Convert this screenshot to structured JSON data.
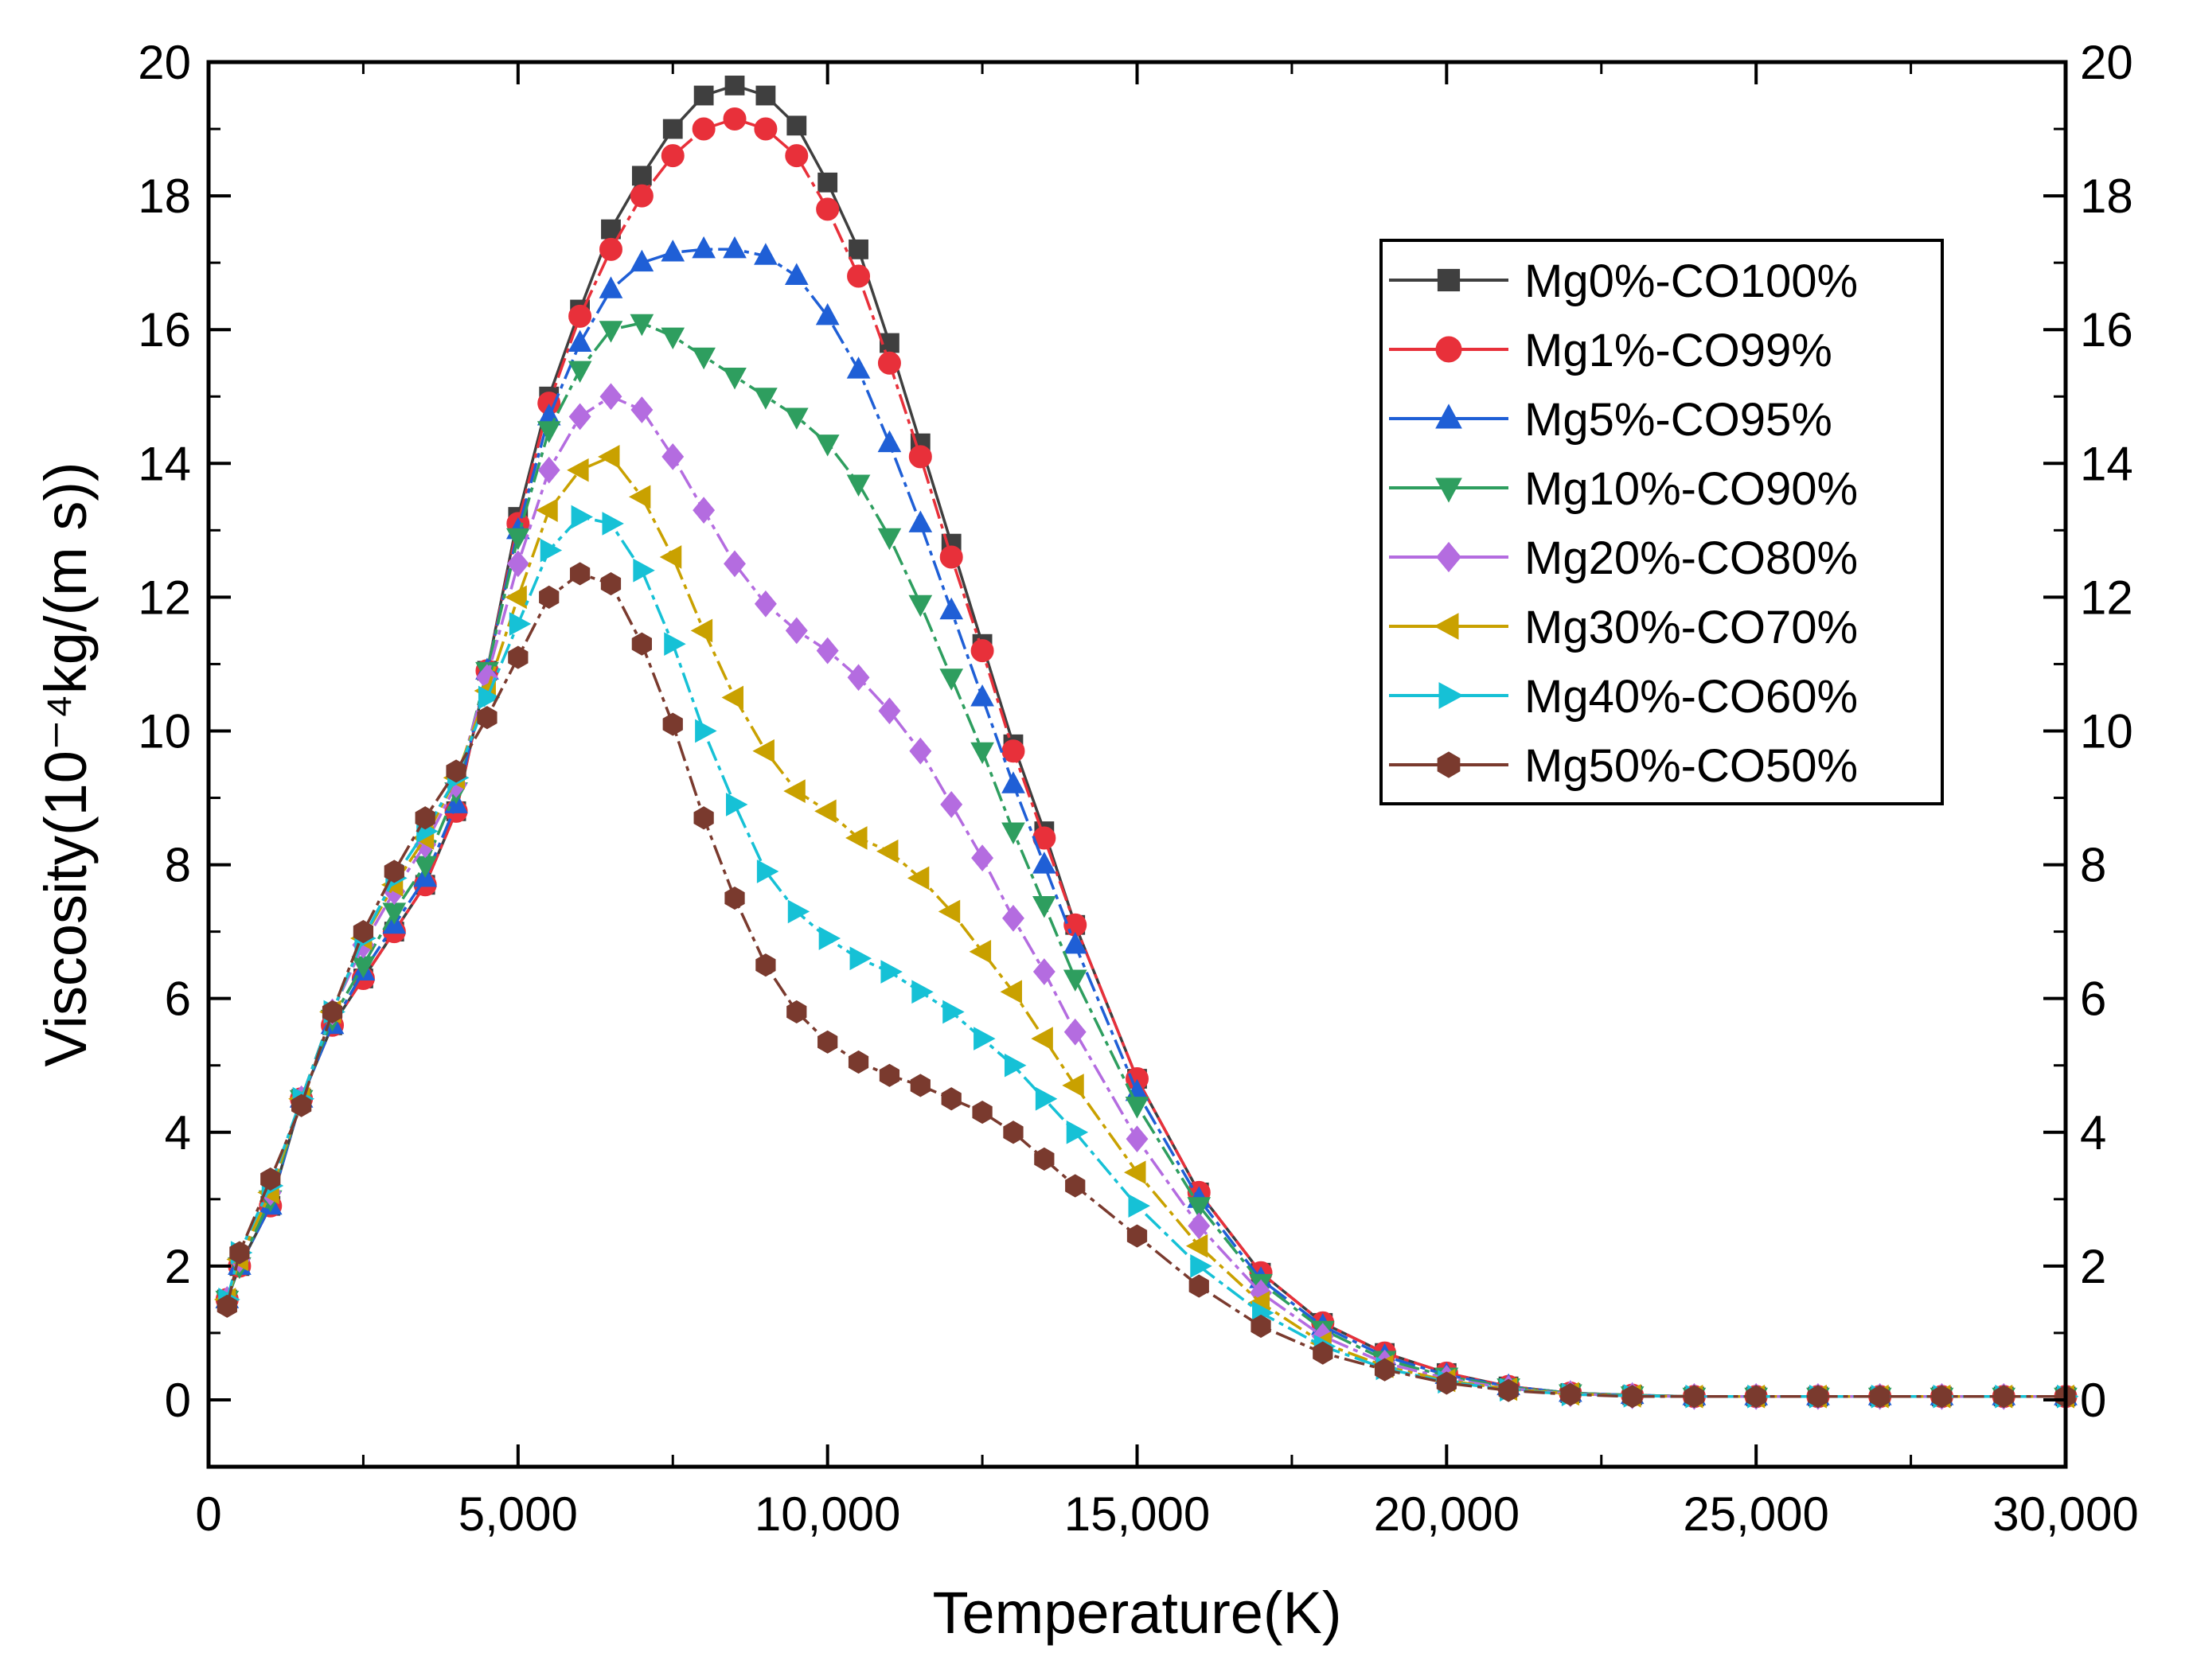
{
  "chart_data": {
    "type": "line",
    "title": "",
    "xlabel": "Temperature(K)",
    "ylabel": "Viscosity(10⁻⁴kg/(m s))",
    "xlim": [
      0,
      30000
    ],
    "ylim": [
      -1,
      20
    ],
    "xticks": [
      0,
      5000,
      10000,
      15000,
      20000,
      25000,
      30000
    ],
    "xtick_labels": [
      "0",
      "5,000",
      "10,000",
      "15,000",
      "20,000",
      "25,000",
      "30,000"
    ],
    "yticks": [
      0,
      2,
      4,
      6,
      8,
      10,
      12,
      14,
      16,
      18,
      20
    ],
    "ytick_labels": [
      "0",
      "2",
      "4",
      "6",
      "8",
      "10",
      "12",
      "14",
      "16",
      "18",
      "20"
    ],
    "right_axis_labels": true,
    "grid": false,
    "legend_position": "top-right",
    "x": [
      300,
      500,
      1000,
      1500,
      2000,
      2500,
      3000,
      3500,
      4000,
      4500,
      5000,
      5500,
      6000,
      6500,
      7000,
      7500,
      8000,
      8500,
      9000,
      9500,
      10000,
      10500,
      11000,
      11500,
      12000,
      12500,
      13000,
      13500,
      14000,
      15000,
      16000,
      17000,
      18000,
      19000,
      20000,
      21000,
      22000,
      23000,
      24000,
      25000,
      26000,
      27000,
      28000,
      29000,
      30000
    ],
    "series": [
      {
        "name": "Mg0%-CO100%",
        "color": "#3f3f3f",
        "marker": "square",
        "values": [
          1.5,
          2.0,
          2.9,
          4.5,
          5.6,
          6.3,
          7.0,
          7.7,
          8.8,
          10.9,
          13.2,
          15.0,
          16.3,
          17.5,
          18.3,
          19.0,
          19.5,
          19.65,
          19.5,
          19.05,
          18.2,
          17.2,
          15.8,
          14.3,
          12.8,
          11.3,
          9.8,
          8.5,
          7.1,
          4.8,
          3.1,
          1.9,
          1.15,
          0.7,
          0.4,
          0.2,
          0.1,
          0.07,
          0.05,
          0.05,
          0.05,
          0.05,
          0.05,
          0.05,
          0.05
        ]
      },
      {
        "name": "Mg1%-CO99%",
        "color": "#e8303a",
        "marker": "circle",
        "values": [
          1.5,
          2.0,
          2.9,
          4.5,
          5.6,
          6.3,
          7.0,
          7.7,
          8.8,
          10.9,
          13.1,
          14.9,
          16.2,
          17.2,
          18.0,
          18.6,
          19.0,
          19.15,
          19.0,
          18.6,
          17.8,
          16.8,
          15.5,
          14.1,
          12.6,
          11.2,
          9.7,
          8.4,
          7.1,
          4.8,
          3.1,
          1.9,
          1.15,
          0.7,
          0.4,
          0.2,
          0.1,
          0.07,
          0.05,
          0.05,
          0.05,
          0.05,
          0.05,
          0.05,
          0.05
        ]
      },
      {
        "name": "Mg5%-CO95%",
        "color": "#1f5fd6",
        "marker": "triangle-up",
        "values": [
          1.5,
          2.0,
          2.9,
          4.5,
          5.6,
          6.4,
          7.1,
          7.8,
          8.9,
          10.9,
          13.0,
          14.7,
          15.8,
          16.6,
          17.0,
          17.15,
          17.2,
          17.2,
          17.1,
          16.8,
          16.2,
          15.4,
          14.3,
          13.1,
          11.8,
          10.5,
          9.2,
          8.0,
          6.8,
          4.6,
          3.0,
          1.8,
          1.1,
          0.65,
          0.37,
          0.2,
          0.1,
          0.07,
          0.05,
          0.05,
          0.05,
          0.05,
          0.05,
          0.05,
          0.05
        ]
      },
      {
        "name": "Mg10%-CO90%",
        "color": "#2e9e5f",
        "marker": "triangle-down",
        "values": [
          1.5,
          2.0,
          3.0,
          4.5,
          5.7,
          6.5,
          7.3,
          8.0,
          9.1,
          10.9,
          12.9,
          14.5,
          15.4,
          16.0,
          16.1,
          15.9,
          15.6,
          15.3,
          15.0,
          14.7,
          14.3,
          13.7,
          12.9,
          11.9,
          10.8,
          9.7,
          8.5,
          7.4,
          6.3,
          4.4,
          2.9,
          1.75,
          1.05,
          0.6,
          0.35,
          0.19,
          0.1,
          0.07,
          0.05,
          0.05,
          0.05,
          0.05,
          0.05,
          0.05,
          0.05
        ]
      },
      {
        "name": "Mg20%-CO80%",
        "color": "#b46ce0",
        "marker": "diamond",
        "values": [
          1.5,
          2.1,
          3.1,
          4.5,
          5.8,
          6.8,
          7.6,
          8.3,
          9.2,
          10.8,
          12.5,
          13.9,
          14.7,
          15.0,
          14.8,
          14.1,
          13.3,
          12.5,
          11.9,
          11.5,
          11.2,
          10.8,
          10.3,
          9.7,
          8.9,
          8.1,
          7.2,
          6.4,
          5.5,
          3.9,
          2.6,
          1.6,
          0.95,
          0.55,
          0.32,
          0.17,
          0.09,
          0.06,
          0.05,
          0.05,
          0.05,
          0.05,
          0.05,
          0.05,
          0.05
        ]
      },
      {
        "name": "Mg30%-CO70%",
        "color": "#c9a100",
        "marker": "triangle-left",
        "values": [
          1.5,
          2.1,
          3.1,
          4.5,
          5.8,
          6.9,
          7.7,
          8.4,
          9.3,
          10.6,
          12.0,
          13.3,
          13.9,
          14.1,
          13.5,
          12.6,
          11.5,
          10.5,
          9.7,
          9.1,
          8.8,
          8.4,
          8.2,
          7.8,
          7.3,
          6.7,
          6.1,
          5.4,
          4.7,
          3.4,
          2.3,
          1.45,
          0.85,
          0.5,
          0.29,
          0.16,
          0.09,
          0.06,
          0.05,
          0.05,
          0.05,
          0.05,
          0.05,
          0.05,
          0.05
        ]
      },
      {
        "name": "Mg40%-CO60%",
        "color": "#16c1d6",
        "marker": "triangle-right",
        "values": [
          1.5,
          2.2,
          3.2,
          4.5,
          5.8,
          6.9,
          7.8,
          8.5,
          9.3,
          10.5,
          11.6,
          12.7,
          13.2,
          13.1,
          12.4,
          11.3,
          10.0,
          8.9,
          7.9,
          7.3,
          6.9,
          6.6,
          6.4,
          6.1,
          5.8,
          5.4,
          5.0,
          4.5,
          4.0,
          2.9,
          2.0,
          1.3,
          0.8,
          0.47,
          0.27,
          0.15,
          0.08,
          0.06,
          0.05,
          0.05,
          0.05,
          0.05,
          0.05,
          0.05,
          0.05
        ]
      },
      {
        "name": "Mg50%-CO50%",
        "color": "#7a3a2e",
        "marker": "hexagon",
        "values": [
          1.4,
          2.2,
          3.3,
          4.4,
          5.8,
          7.0,
          7.9,
          8.7,
          9.4,
          10.2,
          11.1,
          12.0,
          12.35,
          12.2,
          11.3,
          10.1,
          8.7,
          7.5,
          6.5,
          5.8,
          5.35,
          5.05,
          4.85,
          4.7,
          4.5,
          4.3,
          4.0,
          3.6,
          3.2,
          2.45,
          1.7,
          1.1,
          0.7,
          0.45,
          0.25,
          0.14,
          0.08,
          0.05,
          0.05,
          0.05,
          0.05,
          0.05,
          0.05,
          0.05,
          0.05
        ]
      }
    ]
  }
}
